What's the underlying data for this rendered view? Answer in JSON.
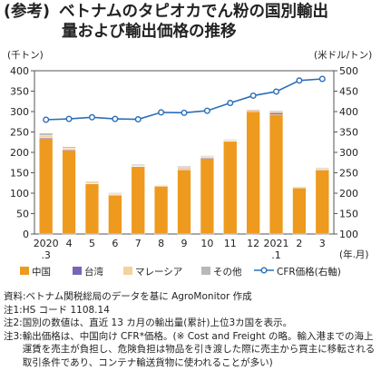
{
  "title": {
    "tag": "(参考)",
    "line1": "ベトナムのタピオカでん粉の国別輸出",
    "line2": "量および輸出価格の推移"
  },
  "axes": {
    "left_unit": "(千トン)",
    "right_unit": "(米ドル/トン)",
    "x_unit": "(年.月)"
  },
  "colors": {
    "china": "#ee9a1e",
    "taiwan": "#7a64b4",
    "malaysia": "#f5d19c",
    "other": "#b8b8b8",
    "cfr": "#2b6fb8"
  },
  "chart_data": {
    "type": "bar",
    "categories": [
      "2020\n.3",
      "4",
      "5",
      "6",
      "7",
      "8",
      "9",
      "10",
      "11",
      "12",
      "2021\n.1",
      "2",
      "3"
    ],
    "series": [
      {
        "name": "中国",
        "values": [
          234,
          205,
          123,
          95,
          165,
          117,
          157,
          185,
          227,
          300,
          293,
          113,
          157
        ]
      },
      {
        "name": "台湾",
        "values": [
          2,
          2,
          1,
          1,
          1,
          1,
          2,
          2,
          1,
          2,
          4,
          1,
          1
        ]
      },
      {
        "name": "マレーシア",
        "values": [
          6,
          4,
          3,
          3,
          3,
          2,
          4,
          3,
          2,
          3,
          4,
          2,
          3
        ]
      },
      {
        "name": "その他",
        "values": [
          5,
          3,
          2,
          2,
          2,
          1,
          3,
          2,
          2,
          1,
          2,
          1,
          2
        ]
      }
    ],
    "line_series": {
      "name": "CFR価格(右軸)",
      "values": [
        380,
        382,
        386,
        382,
        381,
        398,
        397,
        402,
        421,
        439,
        449,
        476,
        480
      ]
    },
    "ylim_left": [
      0,
      400
    ],
    "yticks_left": [
      0,
      50,
      100,
      150,
      200,
      250,
      300,
      350,
      400
    ],
    "ylim_right": [
      100,
      500
    ],
    "yticks_right": [
      100,
      150,
      200,
      250,
      300,
      350,
      400,
      450,
      500
    ],
    "grid": false,
    "legend_position": "bottom"
  },
  "legend": {
    "china": "中国",
    "taiwan": "台湾",
    "malaysia": "マレーシア",
    "other": "その他",
    "cfr": "CFR価格(右軸)"
  },
  "notes": [
    {
      "head": "資料:",
      "body": "ベトナム関税総局のデータを基に AgroMonitor 作成"
    },
    {
      "head": "注1:",
      "body": "HS コード 1108.14"
    },
    {
      "head": "注2:",
      "body": "国別の数値は、直近 13 カ月の輸出量(累計)上位3カ国を表示。"
    },
    {
      "head": "注3:",
      "body": "輸出価格は、中国向け CFR*価格。(※ Cost and Freight の略。輸入港までの海上運賃を売主が負担し、危険負担は物品を引き渡した際に売主から買主に移転される取引条件であり、コンテナ輸送貨物に使われることが多い)"
    }
  ]
}
